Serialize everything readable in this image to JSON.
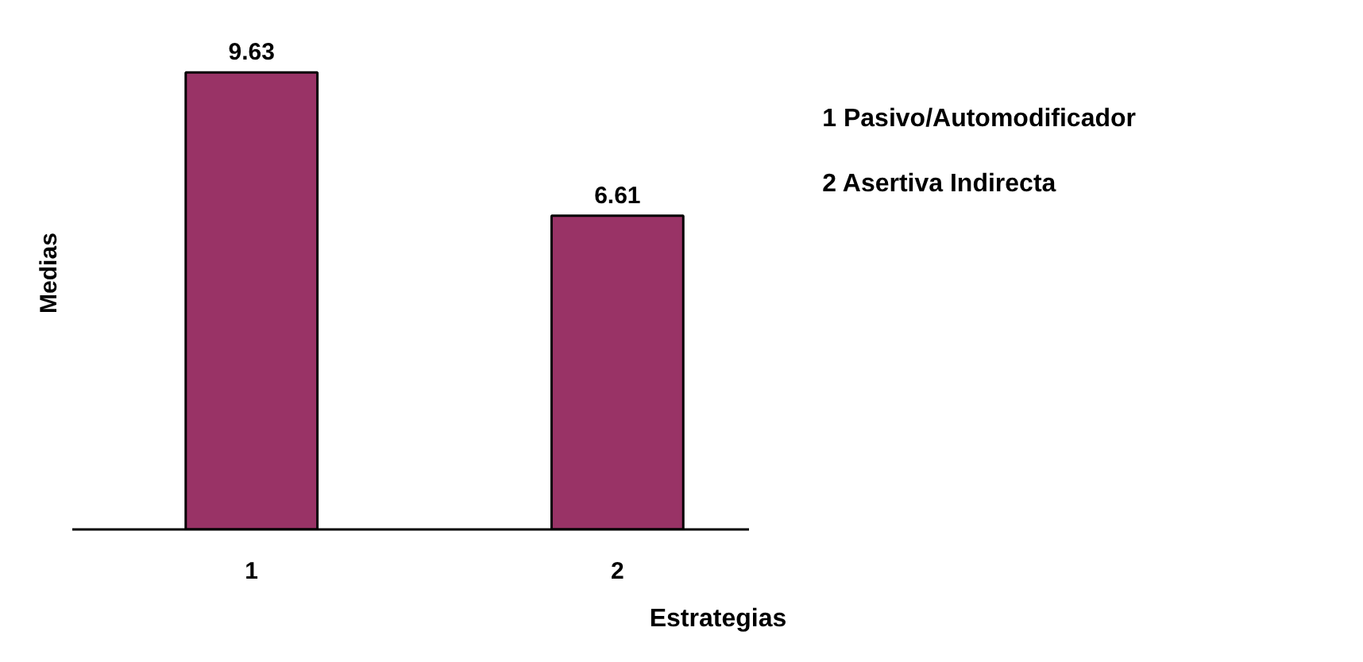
{
  "chart_data": {
    "type": "bar",
    "xlabel": "Estrategias",
    "ylabel": "Medias",
    "categories": [
      "1",
      "2"
    ],
    "values": [
      9.63,
      6.61
    ],
    "color": "#993366",
    "tick_labels": "x",
    "data_labels": true,
    "annotations": [
      "1 Pasivo/Automodificador",
      "2 Asertiva Indirecta"
    ]
  }
}
